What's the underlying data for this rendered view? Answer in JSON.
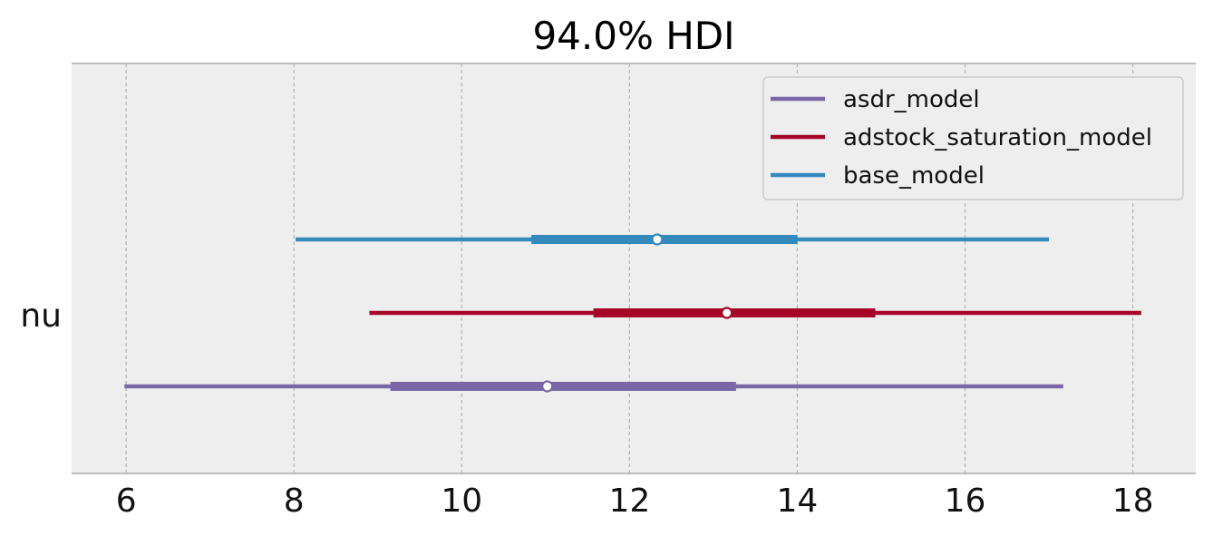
{
  "chart_data": {
    "type": "forest",
    "title": "94.0% HDI",
    "hdi_prob": "94.0%",
    "xlabel": "",
    "ylabel": "",
    "xlim": [
      5.35,
      18.75
    ],
    "xticks": [
      6,
      8,
      10,
      12,
      14,
      16,
      18
    ],
    "grid": "vertical",
    "legend_position": "top-right",
    "parameter_label": "nu",
    "series": [
      {
        "name": "asdr_model",
        "color": "#7a68a6",
        "hdi_low": 5.98,
        "hdi_high": 17.17,
        "iqr_low": 9.15,
        "iqr_high": 13.27,
        "point": 11.02
      },
      {
        "name": "adstock_saturation_model",
        "color": "#a60628",
        "hdi_low": 8.9,
        "hdi_high": 18.1,
        "iqr_low": 11.57,
        "iqr_high": 14.93,
        "point": 13.16
      },
      {
        "name": "base_model",
        "color": "#348abd",
        "hdi_low": 8.02,
        "hdi_high": 17.0,
        "iqr_low": 10.83,
        "iqr_high": 14.0,
        "point": 12.33
      }
    ]
  }
}
